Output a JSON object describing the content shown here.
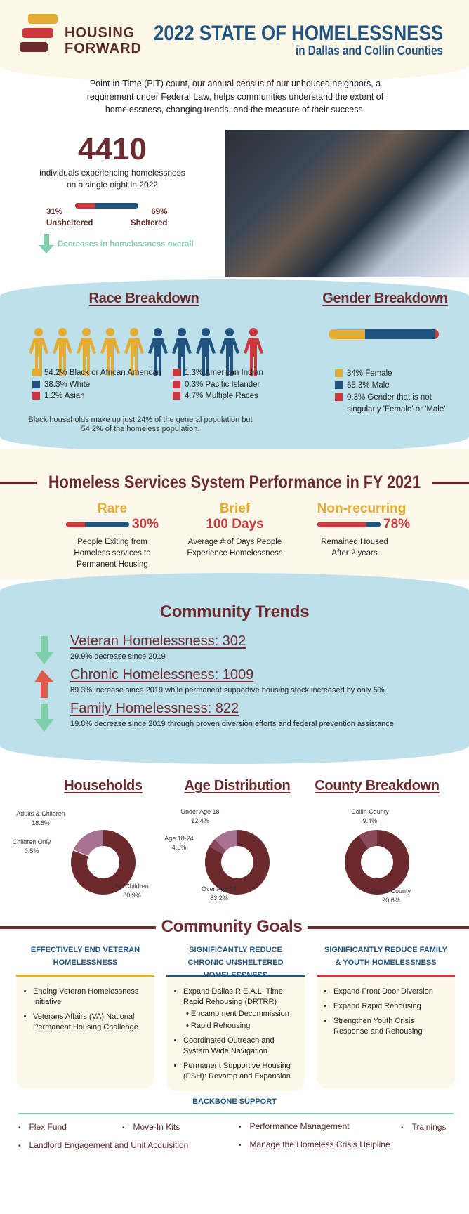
{
  "header": {
    "logo_line1": "HOUSING",
    "logo_line2": "FORWARD",
    "title": "2022 STATE OF HOMELESSNESS",
    "subtitle": "in Dallas and Collin Counties"
  },
  "intro": "Point-in-Time (PIT) count, our annual census of our unhoused neighbors, a requirement under Federal Law, helps communities understand the extent of homelessness, changing trends, and the measure of their success.",
  "overview": {
    "total": "4410",
    "total_desc_1": "individuals experiencing homelessness",
    "total_desc_2": "on a single night in 2022",
    "unsheltered_pct": "31%",
    "unsheltered_label": "Unsheltered",
    "sheltered_pct": "69%",
    "sheltered_label": "Sheltered",
    "unsheltered_fraction": 0.31,
    "trend_icon": "arrow-down-icon",
    "trend_text": "Decreases in homelessness overall"
  },
  "race": {
    "title": "Race Breakdown",
    "figure_colors": [
      "#e2ac35",
      "#e2ac35",
      "#e2ac35",
      "#e2ac35",
      "#e2ac35",
      "#215380",
      "#215380",
      "#215380",
      "#215380",
      "#c9393c"
    ],
    "legend": [
      {
        "label": "54.2% Black or African American",
        "color": "#e2ac35"
      },
      {
        "label": "38.3% White",
        "color": "#215380"
      },
      {
        "label": "1.2% Asian",
        "color": "#c9393c"
      },
      {
        "label": "1.3% American Indian",
        "color": "#c9393c"
      },
      {
        "label": "0.3% Pacific Islander",
        "color": "#c9393c"
      },
      {
        "label": "4.7% Multiple Races",
        "color": "#c9393c"
      }
    ],
    "note": "Black households make up just 24% of the general population but 54.2% of the homeless population."
  },
  "gender": {
    "title": "Gender Breakdown",
    "values": [
      34,
      65.3,
      0.3
    ],
    "legend": [
      {
        "label": "34% Female",
        "color": "#e2ac35"
      },
      {
        "label": "65.3% Male",
        "color": "#215380"
      },
      {
        "label": "0.3% Gender that is not singularly 'Female' or 'Male'",
        "color": "#c9393c"
      }
    ]
  },
  "performance": {
    "title": "Homeless Services System Performance in FY 2021",
    "rare": {
      "label": "Rare",
      "value": "30%",
      "fraction": 0.3,
      "desc": "People Exiting from Homeless services to Permanent Housing"
    },
    "brief": {
      "label": "Brief",
      "value": "100 Days",
      "desc": "Average # of Days People Experience Homelessness"
    },
    "nonrecurring": {
      "label": "Non-recurring",
      "value": "78%",
      "fraction": 0.78,
      "desc": "Remained Housed After 2 years"
    }
  },
  "trends": {
    "title": "Community Trends",
    "items": [
      {
        "icon": "arrow-down-icon",
        "title": "Veteran Homelessness: 302",
        "desc": "29.9% decrease since 2019"
      },
      {
        "icon": "arrow-up-icon",
        "title": "Chronic Homelessness: 1009",
        "desc": "89.3% increase since 2019 while permanent supportive housing stock increased by only 5%."
      },
      {
        "icon": "arrow-down-icon",
        "title": "Family Homelessness: 822",
        "desc": "19.8% decrease since 2019 through proven diversion efforts and federal prevention assistance"
      }
    ]
  },
  "chart_data": [
    {
      "type": "pie",
      "title": "Households",
      "slices": [
        {
          "label": "No Children",
          "value": 80.9,
          "display": "80.9%",
          "color": "#6b2a2e"
        },
        {
          "label": "Children Only",
          "value": 0.5,
          "display": "0.5%",
          "color": "#f3e9ef"
        },
        {
          "label": "Adults & Children",
          "value": 18.6,
          "display": "18.6%",
          "color": "#a87390"
        }
      ]
    },
    {
      "type": "pie",
      "title": "Age Distribution",
      "slices": [
        {
          "label": "Over Age 24",
          "value": 83.2,
          "display": "83.2%",
          "color": "#6b2a2e"
        },
        {
          "label": "Age 18-24",
          "value": 4.5,
          "display": "4.5%",
          "color": "#8a4a5c"
        },
        {
          "label": "Under Age 18",
          "value": 12.4,
          "display": "12.4%",
          "color": "#a87390"
        }
      ]
    },
    {
      "type": "pie",
      "title": "County Breakdown",
      "slices": [
        {
          "label": "Dallas County",
          "value": 90.6,
          "display": "90.6%",
          "color": "#6b2a2e"
        },
        {
          "label": "Collin County",
          "value": 9.4,
          "display": "9.4%",
          "color": "#8a4a5c"
        }
      ]
    }
  ],
  "goals": {
    "title": "Community Goals",
    "columns": [
      {
        "heading": "EFFECTIVELY END VETERAN HOMELESSNESS",
        "color": "#e2ac35",
        "items": [
          "Ending Veteran Homelessness Initiative",
          "Veterans Affairs (VA) National Permanent Housing Challenge"
        ]
      },
      {
        "heading": "SIGNIFICANTLY REDUCE CHRONIC UNSHELTERED HOMELESSNESS",
        "color": "#215380",
        "items": [
          "Expand Dallas R.E.A.L. Time Rapid Rehousing (DRTRR)",
          "Coordinated Outreach and System Wide Navigation",
          "Permanent Supportive Housing (PSH): Revamp and Expansion"
        ],
        "subitems": [
          "Encampment Decommission",
          "Rapid Rehousing"
        ]
      },
      {
        "heading": "SIGNIFICANTLY REDUCE FAMILY & YOUTH HOMELESSNESS",
        "color": "#c9393c",
        "items": [
          "Expand Front Door Diversion",
          "Expand Rapid Rehousing",
          "Strengthen Youth Crisis Response and Rehousing"
        ]
      }
    ]
  },
  "backbone": {
    "title": "BACKBONE SUPPORT",
    "items": [
      "Flex Fund",
      "Move-In Kits",
      "Performance Management",
      "Trainings",
      "Landlord Engagement and Unit Acquisition",
      "Manage the Homeless Crisis Helpline"
    ]
  }
}
